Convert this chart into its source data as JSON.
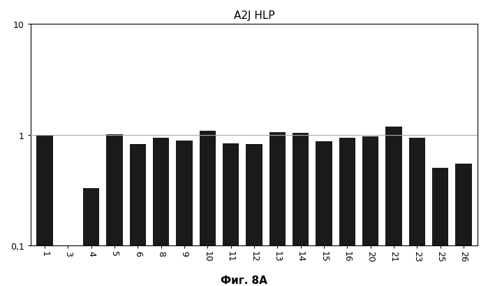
{
  "title": "A2J HLP",
  "xlabel_fig": "Фиг. 8A",
  "categories": [
    "1",
    "3",
    "4",
    "5",
    "6",
    "8",
    "9",
    "10",
    "11",
    "12",
    "13",
    "14",
    "15",
    "16",
    "20",
    "21",
    "23",
    "25",
    "26"
  ],
  "values": [
    1.0,
    null,
    0.33,
    1.01,
    0.82,
    0.93,
    0.88,
    1.08,
    0.83,
    0.82,
    1.06,
    1.03,
    0.87,
    0.94,
    0.97,
    1.18,
    0.93,
    0.5,
    0.55
  ],
  "bar_color": "#1a1a1a",
  "ylim_min": 0.1,
  "ylim_max": 10,
  "yticks": [
    0.1,
    1,
    10
  ],
  "ytick_labels": [
    "0,1",
    "1",
    "10"
  ],
  "hline_y": 1.0,
  "hline_color": "#aaaaaa",
  "background_color": "#ffffff",
  "title_fontsize": 11,
  "tick_fontsize": 9,
  "fig_label_fontsize": 11,
  "bar_width": 0.7
}
